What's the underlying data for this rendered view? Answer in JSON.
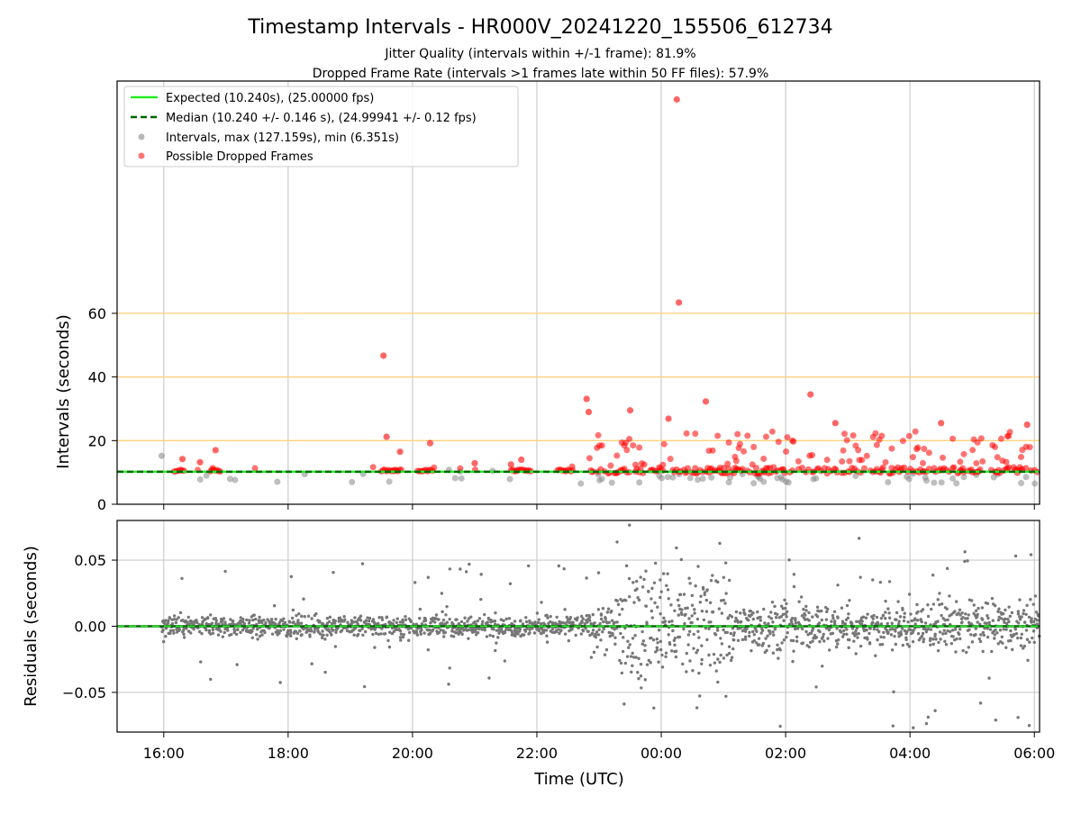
{
  "chart_data": [
    {
      "type": "scatter",
      "title": "Timestamp Intervals - HR000V_20241220_155506_612734",
      "subtitle_lines": [
        "Jitter Quality (intervals within +/-1 frame): 81.9%",
        "Dropped Frame Rate (intervals >1 frames late within 50 FF files): 57.9%"
      ],
      "ylabel": "Intervals (seconds)",
      "xlim": [
        "15:15",
        "06:05"
      ],
      "ylim": [
        0,
        133
      ],
      "x_ticks": [
        "16:00",
        "18:00",
        "20:00",
        "22:00",
        "00:00",
        "02:00",
        "04:00",
        "06:00"
      ],
      "y_ticks": [
        0,
        20,
        40,
        60
      ],
      "threshold_lines": [
        20,
        40,
        60
      ],
      "grid": "vertical",
      "legend_position": "top-left",
      "legend": {
        "expected": "Expected (10.240s), (25.00000 fps)",
        "median": "Median (10.240 +/- 0.146 s), (24.99941 +/- 0.12 fps)",
        "intervals": "Intervals, max (127.159s), min (6.351s)",
        "dropped": "Possible Dropped Frames"
      },
      "expected_value": 10.24,
      "median_value": 10.24,
      "dropped_outliers": [
        {
          "x": "00:15",
          "y": 127.2
        },
        {
          "x": "00:17",
          "y": 63.4
        },
        {
          "x": "19:32",
          "y": 46.7
        },
        {
          "x": "02:24",
          "y": 34.5
        },
        {
          "x": "22:48",
          "y": 33.1
        },
        {
          "x": "00:43",
          "y": 32.3
        },
        {
          "x": "23:30",
          "y": 29.5
        },
        {
          "x": "22:50",
          "y": 29.0
        },
        {
          "x": "00:07",
          "y": 26.9
        },
        {
          "x": "04:30",
          "y": 25.5
        },
        {
          "x": "05:53",
          "y": 25.0
        },
        {
          "x": "02:48",
          "y": 25.5
        },
        {
          "x": "19:35",
          "y": 21.2
        },
        {
          "x": "20:17",
          "y": 19.2
        },
        {
          "x": "16:50",
          "y": 17.0
        },
        {
          "x": "19:48",
          "y": 16.5
        },
        {
          "x": "16:18",
          "y": 14.2
        },
        {
          "x": "21:45",
          "y": 14.0
        },
        {
          "x": "21:35",
          "y": 12.5
        },
        {
          "x": "21:00",
          "y": 12.9
        },
        {
          "x": "16:35",
          "y": 13.2
        }
      ]
    },
    {
      "type": "scatter",
      "xlabel": "Time (UTC)",
      "ylabel": "Residuals (seconds)",
      "xlim": [
        "15:15",
        "06:05"
      ],
      "ylim": [
        -0.08,
        0.08
      ],
      "x_ticks": [
        "16:00",
        "18:00",
        "20:00",
        "22:00",
        "00:00",
        "02:00",
        "04:00",
        "06:00"
      ],
      "y_ticks": [
        "0.05",
        "0.00",
        "−0.05"
      ],
      "y_tick_values": [
        0.05,
        0.0,
        -0.05
      ],
      "grid": "both",
      "zero_line": 0.0
    }
  ],
  "colors": {
    "expected": "#22ee22",
    "median": "#006400",
    "interval_points": "#888888",
    "dropped_points": "#ff0000",
    "threshold": "#ffd27f",
    "residual_points": "#777777",
    "grid": "#cccccc"
  }
}
